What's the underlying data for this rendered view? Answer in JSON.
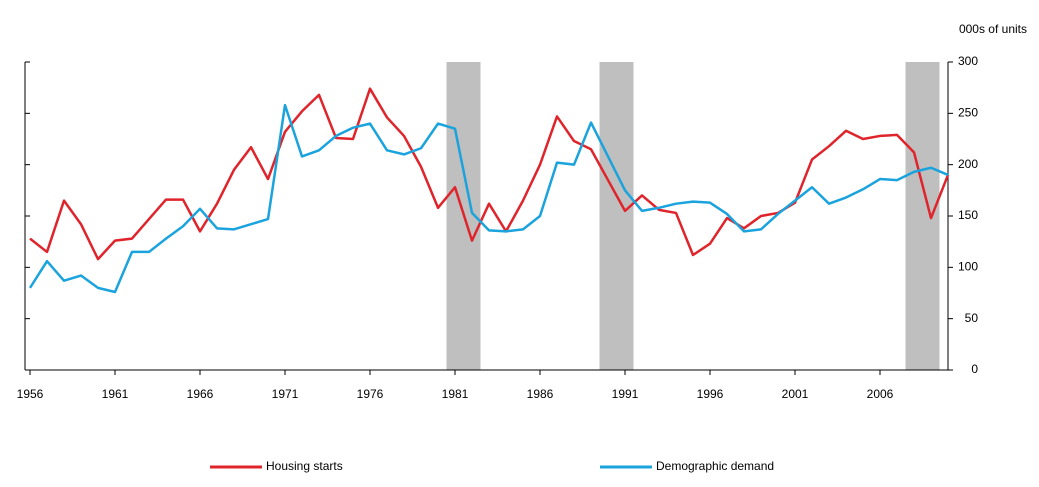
{
  "chart_data": {
    "type": "line",
    "y_axis_label": "000s of units",
    "x": [
      1956,
      1957,
      1958,
      1959,
      1960,
      1961,
      1962,
      1963,
      1964,
      1965,
      1966,
      1967,
      1968,
      1969,
      1970,
      1971,
      1972,
      1973,
      1974,
      1975,
      1976,
      1977,
      1978,
      1979,
      1980,
      1981,
      1982,
      1983,
      1984,
      1985,
      1986,
      1987,
      1988,
      1989,
      1990,
      1991,
      1992,
      1993,
      1994,
      1995,
      1996,
      1997,
      1998,
      1999,
      2000,
      2001,
      2002,
      2003,
      2004,
      2005,
      2006,
      2007,
      2008,
      2009,
      2010
    ],
    "series": [
      {
        "name": "Housing starts",
        "color": "#e0242b",
        "values": [
          128,
          115,
          165,
          142,
          108,
          126,
          128,
          147,
          166,
          166,
          135,
          162,
          195,
          217,
          186,
          232,
          252,
          268,
          226,
          225,
          274,
          246,
          228,
          198,
          158,
          178,
          126,
          162,
          135,
          165,
          200,
          247,
          223,
          215,
          185,
          155,
          170,
          156,
          153,
          112,
          123,
          148,
          138,
          150,
          153,
          163,
          205,
          218,
          233,
          225,
          228,
          229,
          212,
          148,
          190
        ]
      },
      {
        "name": "Demographic demand",
        "color": "#1aa3dd",
        "values": [
          80,
          106,
          87,
          92,
          80,
          76,
          115,
          115,
          128,
          140,
          157,
          138,
          137,
          142,
          147,
          258,
          208,
          214,
          228,
          236,
          240,
          214,
          210,
          216,
          240,
          235,
          153,
          136,
          135,
          137,
          150,
          202,
          200,
          241,
          208,
          175,
          155,
          158,
          162,
          164,
          163,
          152,
          135,
          137,
          152,
          165,
          178,
          162,
          168,
          176,
          186,
          185,
          193,
          197,
          190
        ]
      }
    ],
    "shaded_periods": [
      [
        1980.5,
        1982.5
      ],
      [
        1989.5,
        1991.5
      ],
      [
        2007.5,
        2009.5
      ]
    ],
    "xlim": [
      1956,
      2010
    ],
    "xticks": [
      1956,
      1961,
      1966,
      1971,
      1976,
      1981,
      1986,
      1991,
      1996,
      2001,
      2006
    ],
    "ylim": [
      0,
      300
    ],
    "yticks": [
      0,
      50,
      100,
      150,
      200,
      250,
      300
    ]
  }
}
